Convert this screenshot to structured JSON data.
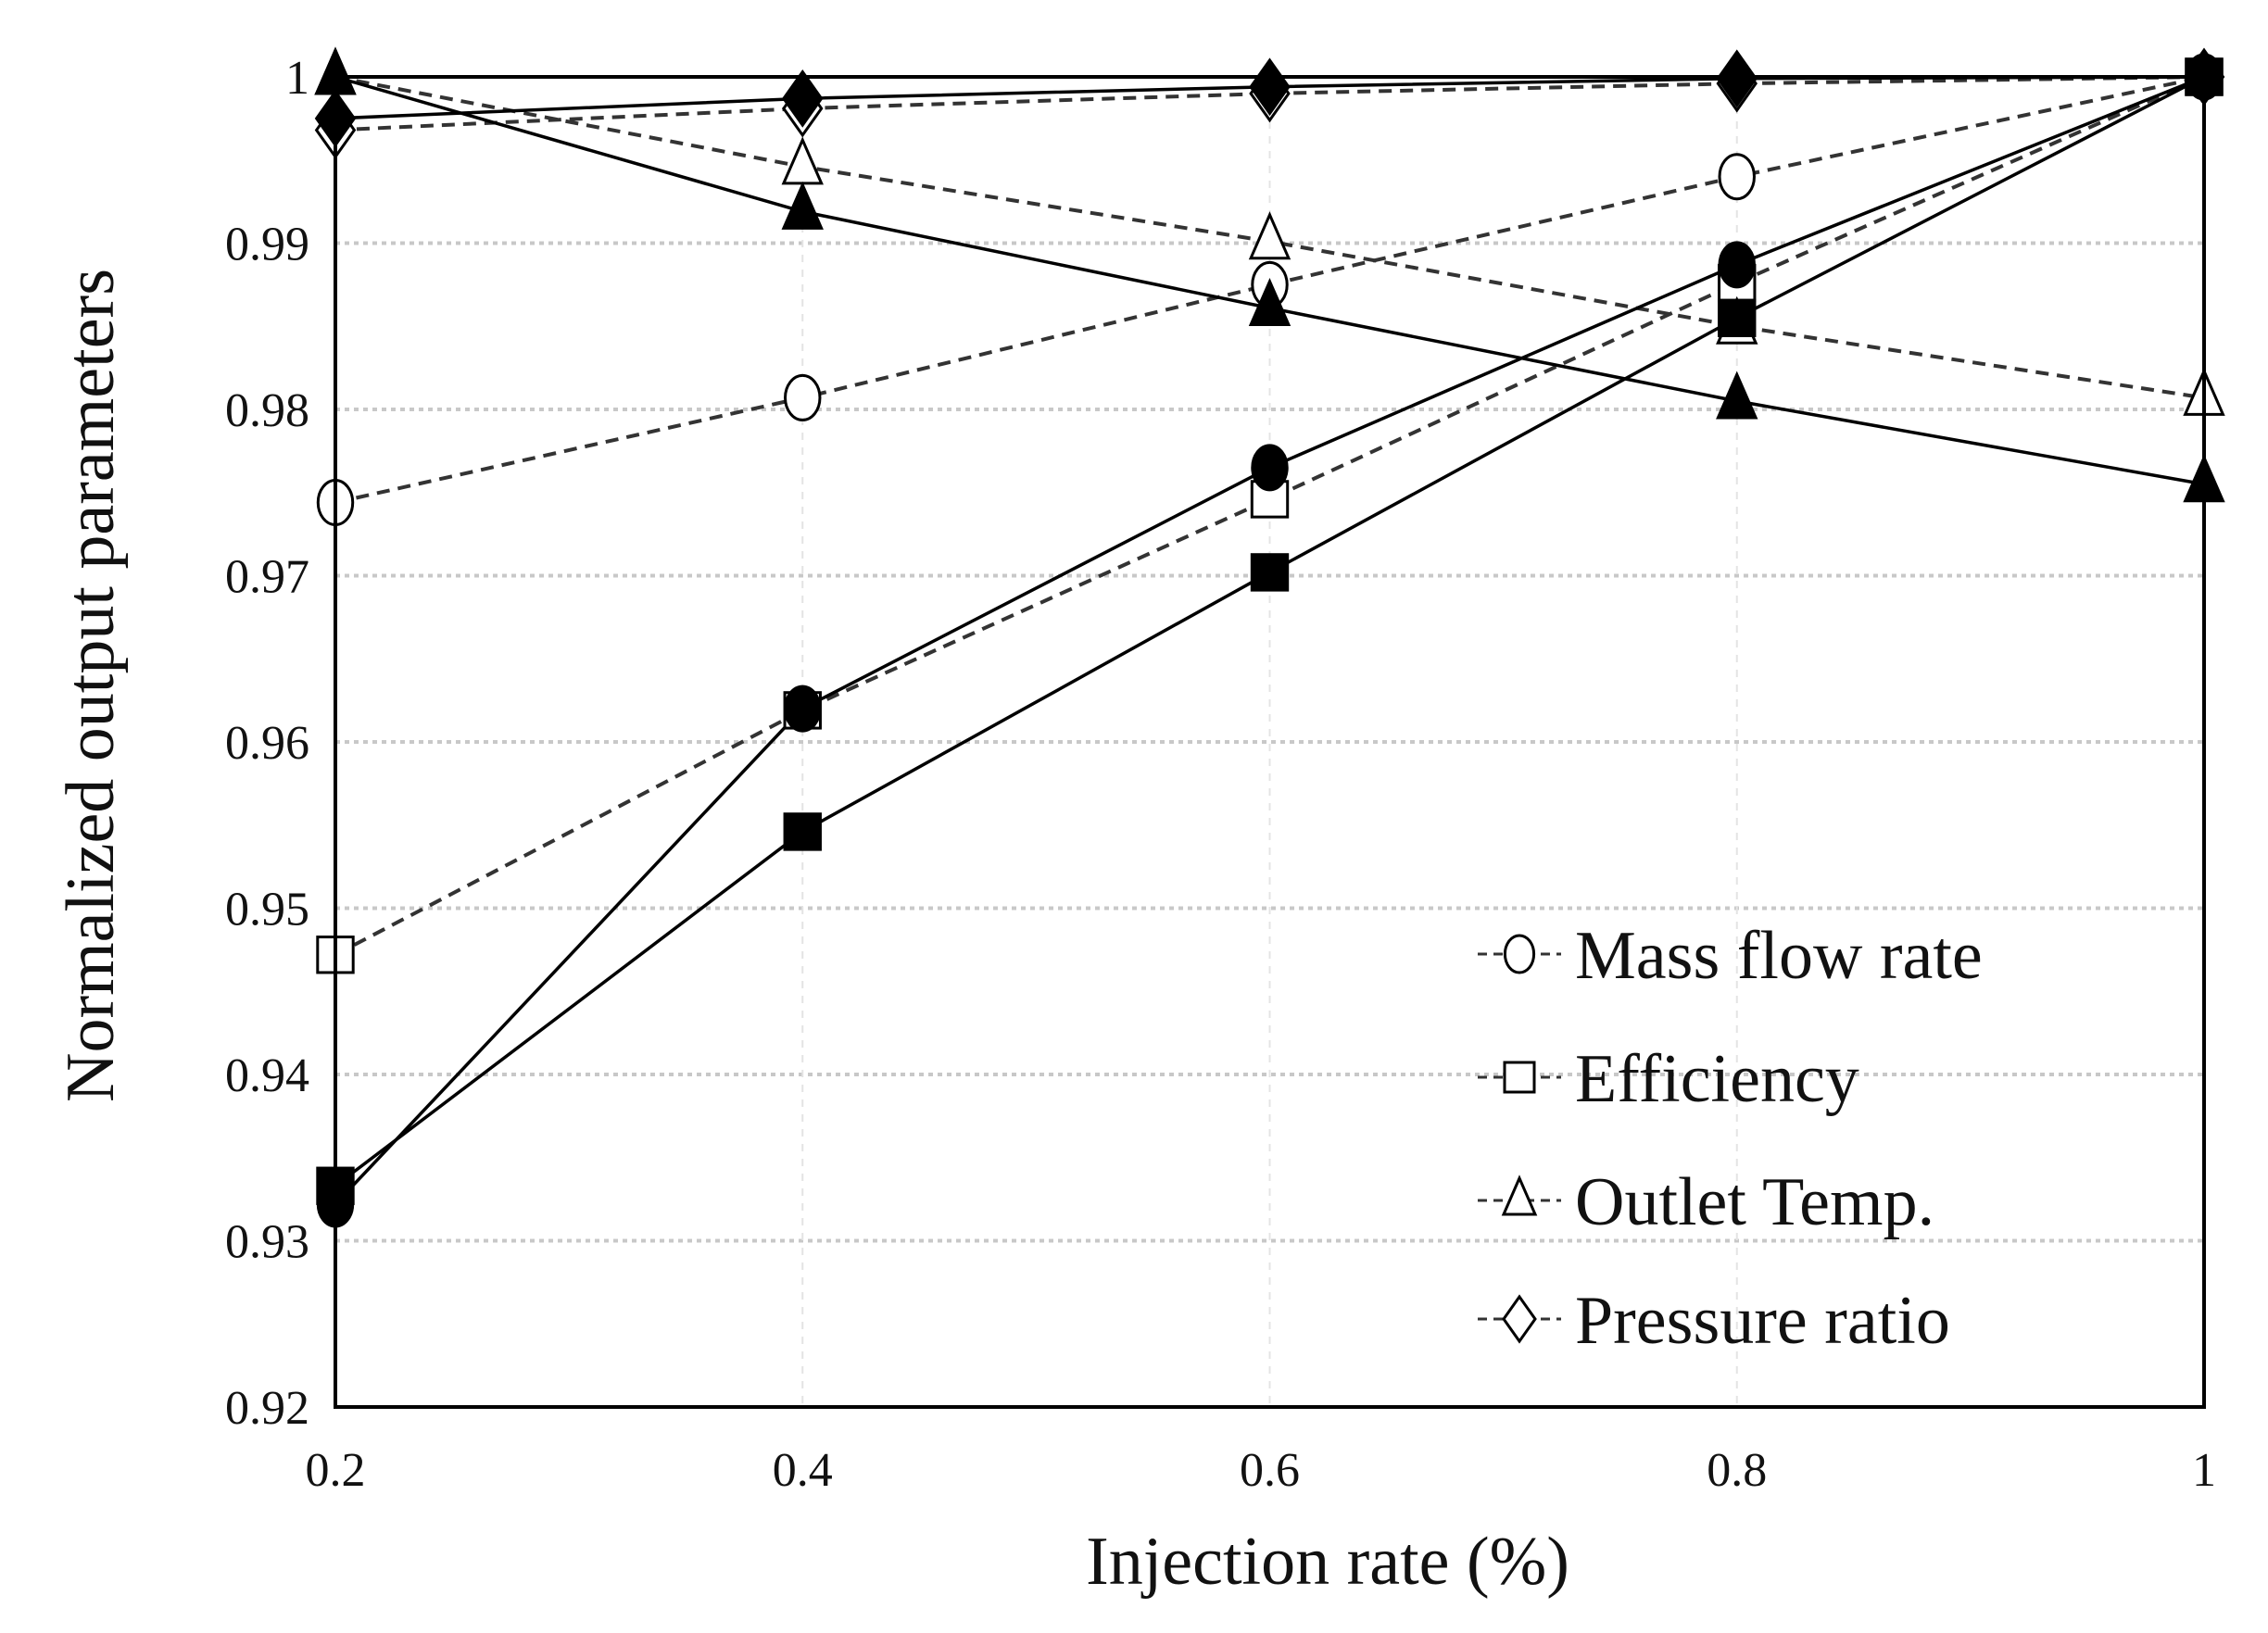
{
  "chart_data": {
    "type": "line",
    "title": "",
    "xlabel": "Injection rate (%)",
    "ylabel": "Normalized output parameters",
    "xlim": [
      0.2,
      1.0
    ],
    "ylim": [
      0.92,
      1.0
    ],
    "x": [
      0.2,
      0.4,
      0.6,
      0.8,
      1.0
    ],
    "x_tick_labels": [
      "0.2",
      "0.4",
      "0.6",
      "0.8",
      "1"
    ],
    "y_ticks": [
      0.92,
      0.93,
      0.94,
      0.95,
      0.96,
      0.97,
      0.98,
      0.99,
      1.0
    ],
    "y_tick_labels": [
      "0.92",
      "0.93",
      "0.94",
      "0.95",
      "0.96",
      "0.97",
      "0.98",
      "0.99",
      "1"
    ],
    "grid": true,
    "legend_position": "bottom-right",
    "series": [
      {
        "name": "Mass flow rate",
        "marker": "circle",
        "fill": "open",
        "line": "dashed",
        "in_legend": true,
        "values": [
          0.9744,
          0.9807,
          0.9875,
          0.994,
          1.0
        ]
      },
      {
        "name": "Efficiency",
        "marker": "square",
        "fill": "open",
        "line": "dashed",
        "in_legend": true,
        "values": [
          0.9472,
          0.9619,
          0.9746,
          0.9876,
          1.0
        ]
      },
      {
        "name": "Outlet Temp.",
        "marker": "triangle",
        "fill": "open",
        "line": "dashed",
        "in_legend": true,
        "values": [
          1.0,
          0.9946,
          0.9901,
          0.985,
          0.9807
        ]
      },
      {
        "name": "Pressure ratio",
        "marker": "diamond",
        "fill": "open",
        "line": "dashed",
        "in_legend": true,
        "values": [
          0.9968,
          0.9981,
          0.999,
          0.9996,
          1.0
        ]
      },
      {
        "marker": "circle",
        "fill": "filled",
        "line": "solid",
        "in_legend": false,
        "values": [
          0.9322,
          0.962,
          0.9765,
          0.9887,
          1.0
        ]
      },
      {
        "marker": "square",
        "fill": "filled",
        "line": "solid",
        "in_legend": false,
        "values": [
          0.9333,
          0.9546,
          0.9702,
          0.9855,
          1.0
        ]
      },
      {
        "marker": "triangle",
        "fill": "filled",
        "line": "solid",
        "in_legend": false,
        "values": [
          1.0,
          0.9919,
          0.9861,
          0.9805,
          0.9755
        ]
      },
      {
        "marker": "diamond",
        "fill": "filled",
        "line": "solid",
        "in_legend": false,
        "values": [
          0.9975,
          0.9987,
          0.9994,
          0.9999,
          1.0
        ]
      }
    ],
    "colors": {
      "ink": "#000000",
      "grid": "#c8c8c8",
      "background": "#ffffff"
    }
  }
}
